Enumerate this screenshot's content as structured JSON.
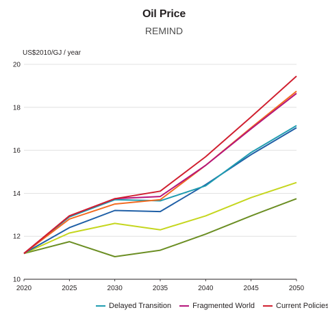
{
  "chart_data": {
    "type": "line",
    "title": "Oil Price",
    "subtitle": "REMIND",
    "ylabel": "US$2010/GJ / year",
    "xlabel": "",
    "x": [
      2020,
      2025,
      2030,
      2035,
      2040,
      2045,
      2050
    ],
    "x_tick_labels": [
      "2020",
      "2025",
      "2030",
      "2035",
      "2040",
      "2045",
      "2050"
    ],
    "ylim": [
      10,
      20
    ],
    "y_ticks": [
      10,
      12,
      14,
      16,
      18,
      20
    ],
    "y_tick_labels": [
      "10",
      "12",
      "14",
      "16",
      "18",
      "20"
    ],
    "grid": "horizontal",
    "legend_position": "bottom",
    "series": [
      {
        "name": "",
        "color": "#6b8e23",
        "values": [
          11.2,
          11.75,
          11.05,
          11.35,
          12.1,
          12.95,
          13.75
        ]
      },
      {
        "name": "",
        "color": "#c5d61e",
        "values": [
          11.2,
          12.15,
          12.6,
          12.3,
          12.95,
          13.8,
          14.5
        ]
      },
      {
        "name": "",
        "color": "#1f5fa6",
        "values": [
          11.2,
          12.4,
          13.2,
          13.15,
          14.4,
          15.8,
          17.05
        ]
      },
      {
        "name": "Delayed Transition",
        "color": "#1f9cb0",
        "values": [
          11.2,
          12.9,
          13.7,
          13.65,
          14.35,
          15.9,
          17.15
        ]
      },
      {
        "name": "",
        "color": "#f26b21",
        "values": [
          11.2,
          12.8,
          13.5,
          13.7,
          15.3,
          17.05,
          18.75
        ]
      },
      {
        "name": "Fragmented World",
        "color": "#b5157a",
        "values": [
          11.2,
          12.95,
          13.75,
          13.85,
          15.3,
          17.0,
          18.65
        ]
      },
      {
        "name": "Current Policies",
        "color": "#d01f2f",
        "values": [
          11.2,
          12.95,
          13.75,
          14.1,
          15.7,
          17.55,
          19.45
        ]
      }
    ]
  }
}
